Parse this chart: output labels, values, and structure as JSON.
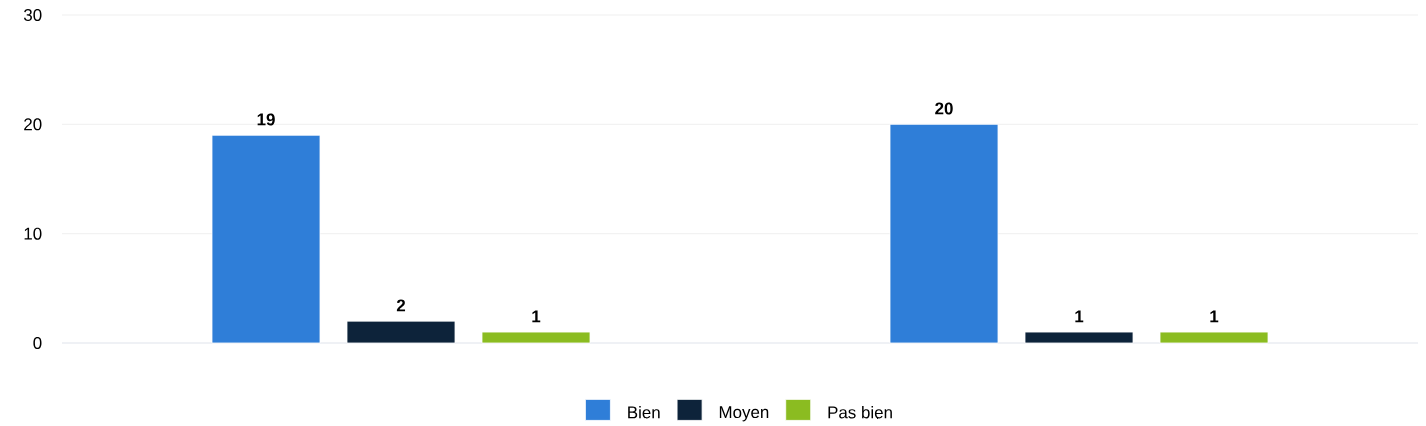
{
  "chart_data": {
    "type": "bar",
    "categories": [
      null,
      null
    ],
    "series": [
      {
        "name": "Bien",
        "color": "#2f7ed8",
        "values": [
          19,
          20
        ]
      },
      {
        "name": "Moyen",
        "color": "#0d233a",
        "values": [
          2,
          1
        ]
      },
      {
        "name": "Pas bien",
        "color": "#8bbc21",
        "values": [
          1,
          1
        ]
      }
    ],
    "ylim": [
      0,
      30
    ],
    "yticks": [
      0,
      10,
      20,
      30
    ],
    "grid": "y",
    "legend": "bottom",
    "data_labels": true
  }
}
